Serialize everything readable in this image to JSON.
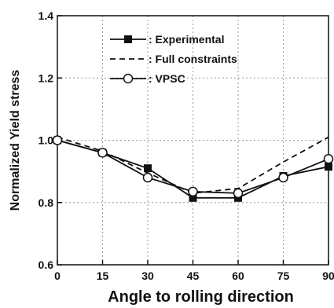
{
  "chart_data": {
    "type": "line",
    "title": "",
    "xlabel": "Angle to rolling direction",
    "ylabel": "Normalized Yield stress",
    "xlim": [
      0,
      90
    ],
    "ylim": [
      0.6,
      1.4
    ],
    "xticks": [
      0,
      15,
      30,
      45,
      60,
      75,
      90
    ],
    "yticks": [
      0.6,
      0.8,
      1.0,
      1.2,
      1.4
    ],
    "xtick_labels": [
      "0",
      "15",
      "30",
      "45",
      "60",
      "75",
      "90"
    ],
    "ytick_labels": [
      "0.6",
      "0.8",
      "1.0",
      "1.2",
      "1.4"
    ],
    "grid": true,
    "legend_position": "top-left",
    "series": [
      {
        "name": ": Experimental",
        "style": "solid-square",
        "x": [
          0,
          15,
          30,
          45,
          60,
          75,
          90
        ],
        "values": [
          1.0,
          0.96,
          0.91,
          0.815,
          0.815,
          0.885,
          0.915
        ]
      },
      {
        "name": ": Full constraints",
        "style": "dashed",
        "x": [
          0,
          15,
          30,
          45,
          60,
          75,
          90
        ],
        "values": [
          1.01,
          0.965,
          0.895,
          0.83,
          0.845,
          0.93,
          1.01
        ]
      },
      {
        "name": ": VPSC",
        "style": "solid-circle",
        "x": [
          0,
          15,
          30,
          45,
          60,
          75,
          90
        ],
        "values": [
          1.0,
          0.96,
          0.88,
          0.835,
          0.83,
          0.88,
          0.94
        ]
      }
    ]
  }
}
